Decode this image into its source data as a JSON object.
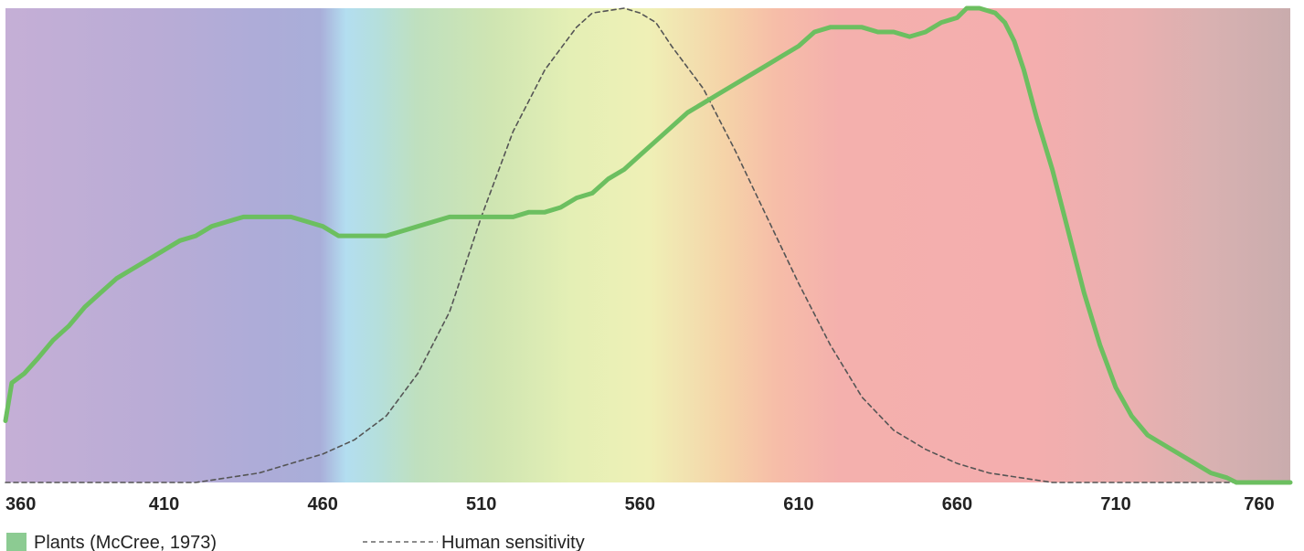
{
  "chart_data": {
    "type": "line",
    "title": "",
    "xlabel": "",
    "ylabel": "",
    "xlim": [
      360,
      765
    ],
    "ylim": [
      0,
      1
    ],
    "grid": false,
    "legend_position": "bottom-left",
    "x_ticks": [
      "360",
      "410",
      "460",
      "510",
      "560",
      "610",
      "660",
      "710",
      "760"
    ],
    "background": "visible light spectrum gradient",
    "series": [
      {
        "name": "Plants (McCree, 1973)",
        "style": "solid",
        "color": "#6cbf60",
        "points": [
          [
            360,
            0.13
          ],
          [
            362,
            0.21
          ],
          [
            366,
            0.23
          ],
          [
            370,
            0.26
          ],
          [
            375,
            0.3
          ],
          [
            380,
            0.33
          ],
          [
            385,
            0.37
          ],
          [
            390,
            0.4
          ],
          [
            395,
            0.43
          ],
          [
            400,
            0.45
          ],
          [
            405,
            0.47
          ],
          [
            410,
            0.49
          ],
          [
            415,
            0.51
          ],
          [
            420,
            0.52
          ],
          [
            425,
            0.54
          ],
          [
            430,
            0.55
          ],
          [
            435,
            0.56
          ],
          [
            440,
            0.56
          ],
          [
            445,
            0.56
          ],
          [
            450,
            0.56
          ],
          [
            455,
            0.55
          ],
          [
            460,
            0.54
          ],
          [
            465,
            0.52
          ],
          [
            470,
            0.52
          ],
          [
            475,
            0.52
          ],
          [
            480,
            0.52
          ],
          [
            485,
            0.53
          ],
          [
            490,
            0.54
          ],
          [
            495,
            0.55
          ],
          [
            500,
            0.56
          ],
          [
            505,
            0.56
          ],
          [
            510,
            0.56
          ],
          [
            515,
            0.56
          ],
          [
            520,
            0.56
          ],
          [
            525,
            0.57
          ],
          [
            530,
            0.57
          ],
          [
            535,
            0.58
          ],
          [
            540,
            0.6
          ],
          [
            545,
            0.61
          ],
          [
            550,
            0.64
          ],
          [
            555,
            0.66
          ],
          [
            560,
            0.69
          ],
          [
            565,
            0.72
          ],
          [
            570,
            0.75
          ],
          [
            575,
            0.78
          ],
          [
            580,
            0.8
          ],
          [
            585,
            0.82
          ],
          [
            590,
            0.84
          ],
          [
            595,
            0.86
          ],
          [
            600,
            0.88
          ],
          [
            605,
            0.9
          ],
          [
            610,
            0.92
          ],
          [
            615,
            0.95
          ],
          [
            620,
            0.96
          ],
          [
            625,
            0.96
          ],
          [
            630,
            0.96
          ],
          [
            635,
            0.95
          ],
          [
            640,
            0.95
          ],
          [
            645,
            0.94
          ],
          [
            650,
            0.95
          ],
          [
            655,
            0.97
          ],
          [
            660,
            0.98
          ],
          [
            663,
            1.0
          ],
          [
            667,
            1.0
          ],
          [
            672,
            0.99
          ],
          [
            675,
            0.97
          ],
          [
            678,
            0.93
          ],
          [
            681,
            0.87
          ],
          [
            685,
            0.77
          ],
          [
            690,
            0.66
          ],
          [
            695,
            0.53
          ],
          [
            700,
            0.4
          ],
          [
            705,
            0.29
          ],
          [
            710,
            0.2
          ],
          [
            715,
            0.14
          ],
          [
            720,
            0.1
          ],
          [
            725,
            0.08
          ],
          [
            730,
            0.06
          ],
          [
            735,
            0.04
          ],
          [
            740,
            0.02
          ],
          [
            745,
            0.01
          ],
          [
            748,
            0.0
          ],
          [
            755,
            0.0
          ],
          [
            765,
            0.0
          ]
        ]
      },
      {
        "name": "Human sensitivity",
        "style": "dashed",
        "color": "#555555",
        "points": [
          [
            360,
            0.0
          ],
          [
            380,
            0.0
          ],
          [
            400,
            0.0
          ],
          [
            420,
            0.0
          ],
          [
            430,
            0.01
          ],
          [
            440,
            0.02
          ],
          [
            450,
            0.04
          ],
          [
            460,
            0.06
          ],
          [
            470,
            0.09
          ],
          [
            480,
            0.14
          ],
          [
            490,
            0.23
          ],
          [
            500,
            0.36
          ],
          [
            505,
            0.46
          ],
          [
            510,
            0.56
          ],
          [
            520,
            0.74
          ],
          [
            530,
            0.87
          ],
          [
            540,
            0.96
          ],
          [
            545,
            0.99
          ],
          [
            555,
            1.0
          ],
          [
            560,
            0.99
          ],
          [
            565,
            0.97
          ],
          [
            570,
            0.92
          ],
          [
            580,
            0.83
          ],
          [
            590,
            0.7
          ],
          [
            600,
            0.56
          ],
          [
            610,
            0.42
          ],
          [
            620,
            0.29
          ],
          [
            630,
            0.18
          ],
          [
            640,
            0.11
          ],
          [
            650,
            0.07
          ],
          [
            660,
            0.04
          ],
          [
            670,
            0.02
          ],
          [
            680,
            0.01
          ],
          [
            690,
            0.0
          ],
          [
            700,
            0.0
          ],
          [
            720,
            0.0
          ],
          [
            740,
            0.0
          ],
          [
            765,
            0.0
          ]
        ]
      }
    ],
    "legend": {
      "plants_label": "Plants (McCree, 1973)",
      "human_label": "Human sensitivity",
      "plants_color": "#8ccb92",
      "human_color": "#666666"
    }
  }
}
